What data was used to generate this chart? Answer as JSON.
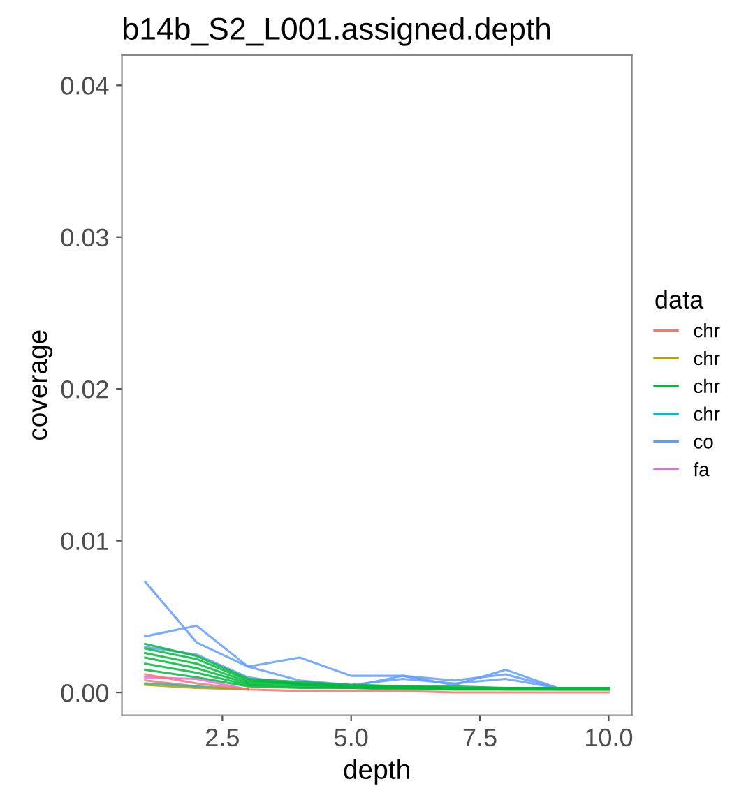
{
  "chart_data": {
    "type": "line",
    "title": "b14b_S2_L001.assigned.depth",
    "xlabel": "depth",
    "ylabel": "coverage",
    "legend_title": "data",
    "legend": "right",
    "grid": false,
    "marker": "none",
    "line_style": "solid",
    "x": [
      1,
      2,
      3,
      4,
      5,
      6,
      7,
      8,
      9,
      10
    ],
    "xlim": [
      0.55,
      10.45
    ],
    "xticks": [
      2.5,
      {
        "value": 5,
        "label": "5.0"
      },
      7.5,
      {
        "value": 10,
        "label": "10.0"
      }
    ],
    "ylim": [
      -0.0015,
      0.042
    ],
    "yticks": [
      {
        "value": 0,
        "label": "0.00"
      },
      0.01,
      0.02,
      0.03,
      0.04
    ],
    "series": [
      {
        "name": "chr",
        "color": "#F8766D",
        "values": [
          0.0012,
          0.0006,
          0.0002,
          0.0001,
          0.0001,
          0.0001,
          0.0,
          0.0,
          0.0,
          0.0
        ]
      },
      {
        "name": "chr",
        "color": "#B79F00",
        "values": [
          0.0005,
          0.0003,
          0.0002,
          null,
          null,
          null,
          null,
          null,
          null,
          null
        ]
      },
      {
        "name": "chr",
        "color": "#00BA38",
        "values": [
          0.0032,
          0.0024,
          0.0009,
          0.0007,
          0.0005,
          0.0004,
          0.0004,
          0.0003,
          0.0003,
          0.0003
        ]
      },
      {
        "name": "chr",
        "color": "#00BFC4",
        "values": [
          0.0006,
          0.0004,
          0.0002,
          null,
          null,
          null,
          null,
          null,
          null,
          null
        ]
      },
      {
        "name": "co",
        "color": "#619CFF",
        "values": [
          0.0073,
          0.0033,
          0.0017,
          0.0008,
          0.0005,
          0.0009,
          0.0006,
          0.0009,
          0.0003,
          null
        ]
      },
      {
        "name": "fa",
        "color": "#F564E3",
        "values": [
          0.001,
          0.0009,
          0.0002,
          null,
          null,
          null,
          null,
          null,
          null,
          null
        ]
      },
      {
        "color": "#F8766D",
        "values": [
          0.0008,
          0.0004,
          null,
          null,
          null,
          null,
          null,
          null,
          null,
          null
        ]
      },
      {
        "color": "#00BA38",
        "values": [
          0.0029,
          0.0022,
          0.0008,
          0.0006,
          0.0005,
          0.0004,
          0.0003,
          0.0003,
          0.0003,
          0.0003
        ]
      },
      {
        "color": "#00BA38",
        "values": [
          0.0026,
          0.0019,
          0.0007,
          0.0006,
          0.0004,
          0.0004,
          0.0003,
          0.0003,
          0.0002,
          0.0002
        ]
      },
      {
        "color": "#00BA38",
        "values": [
          0.0023,
          0.0016,
          0.0006,
          0.0005,
          0.0004,
          0.0003,
          0.0003,
          0.0002,
          0.0002,
          0.0002
        ]
      },
      {
        "color": "#00BA38",
        "values": [
          0.0019,
          0.0013,
          0.0005,
          0.0004,
          0.0003,
          0.0003,
          0.0002,
          0.0002,
          0.0002,
          0.0002
        ]
      },
      {
        "color": "#00BA38",
        "values": [
          0.0015,
          0.001,
          0.0004,
          0.0003,
          0.0003,
          0.0002,
          0.0002,
          0.0002,
          0.0002,
          0.0002
        ]
      },
      {
        "color": "#619CFF",
        "values": [
          0.0037,
          0.0044,
          0.0017,
          0.0023,
          0.0011,
          0.0011,
          0.0005,
          0.0015,
          0.0003,
          null
        ]
      },
      {
        "color": "#619CFF",
        "values": [
          0.003,
          0.0025,
          0.001,
          0.0005,
          0.0004,
          0.0011,
          0.0008,
          0.0012,
          0.0003,
          null
        ]
      }
    ]
  }
}
